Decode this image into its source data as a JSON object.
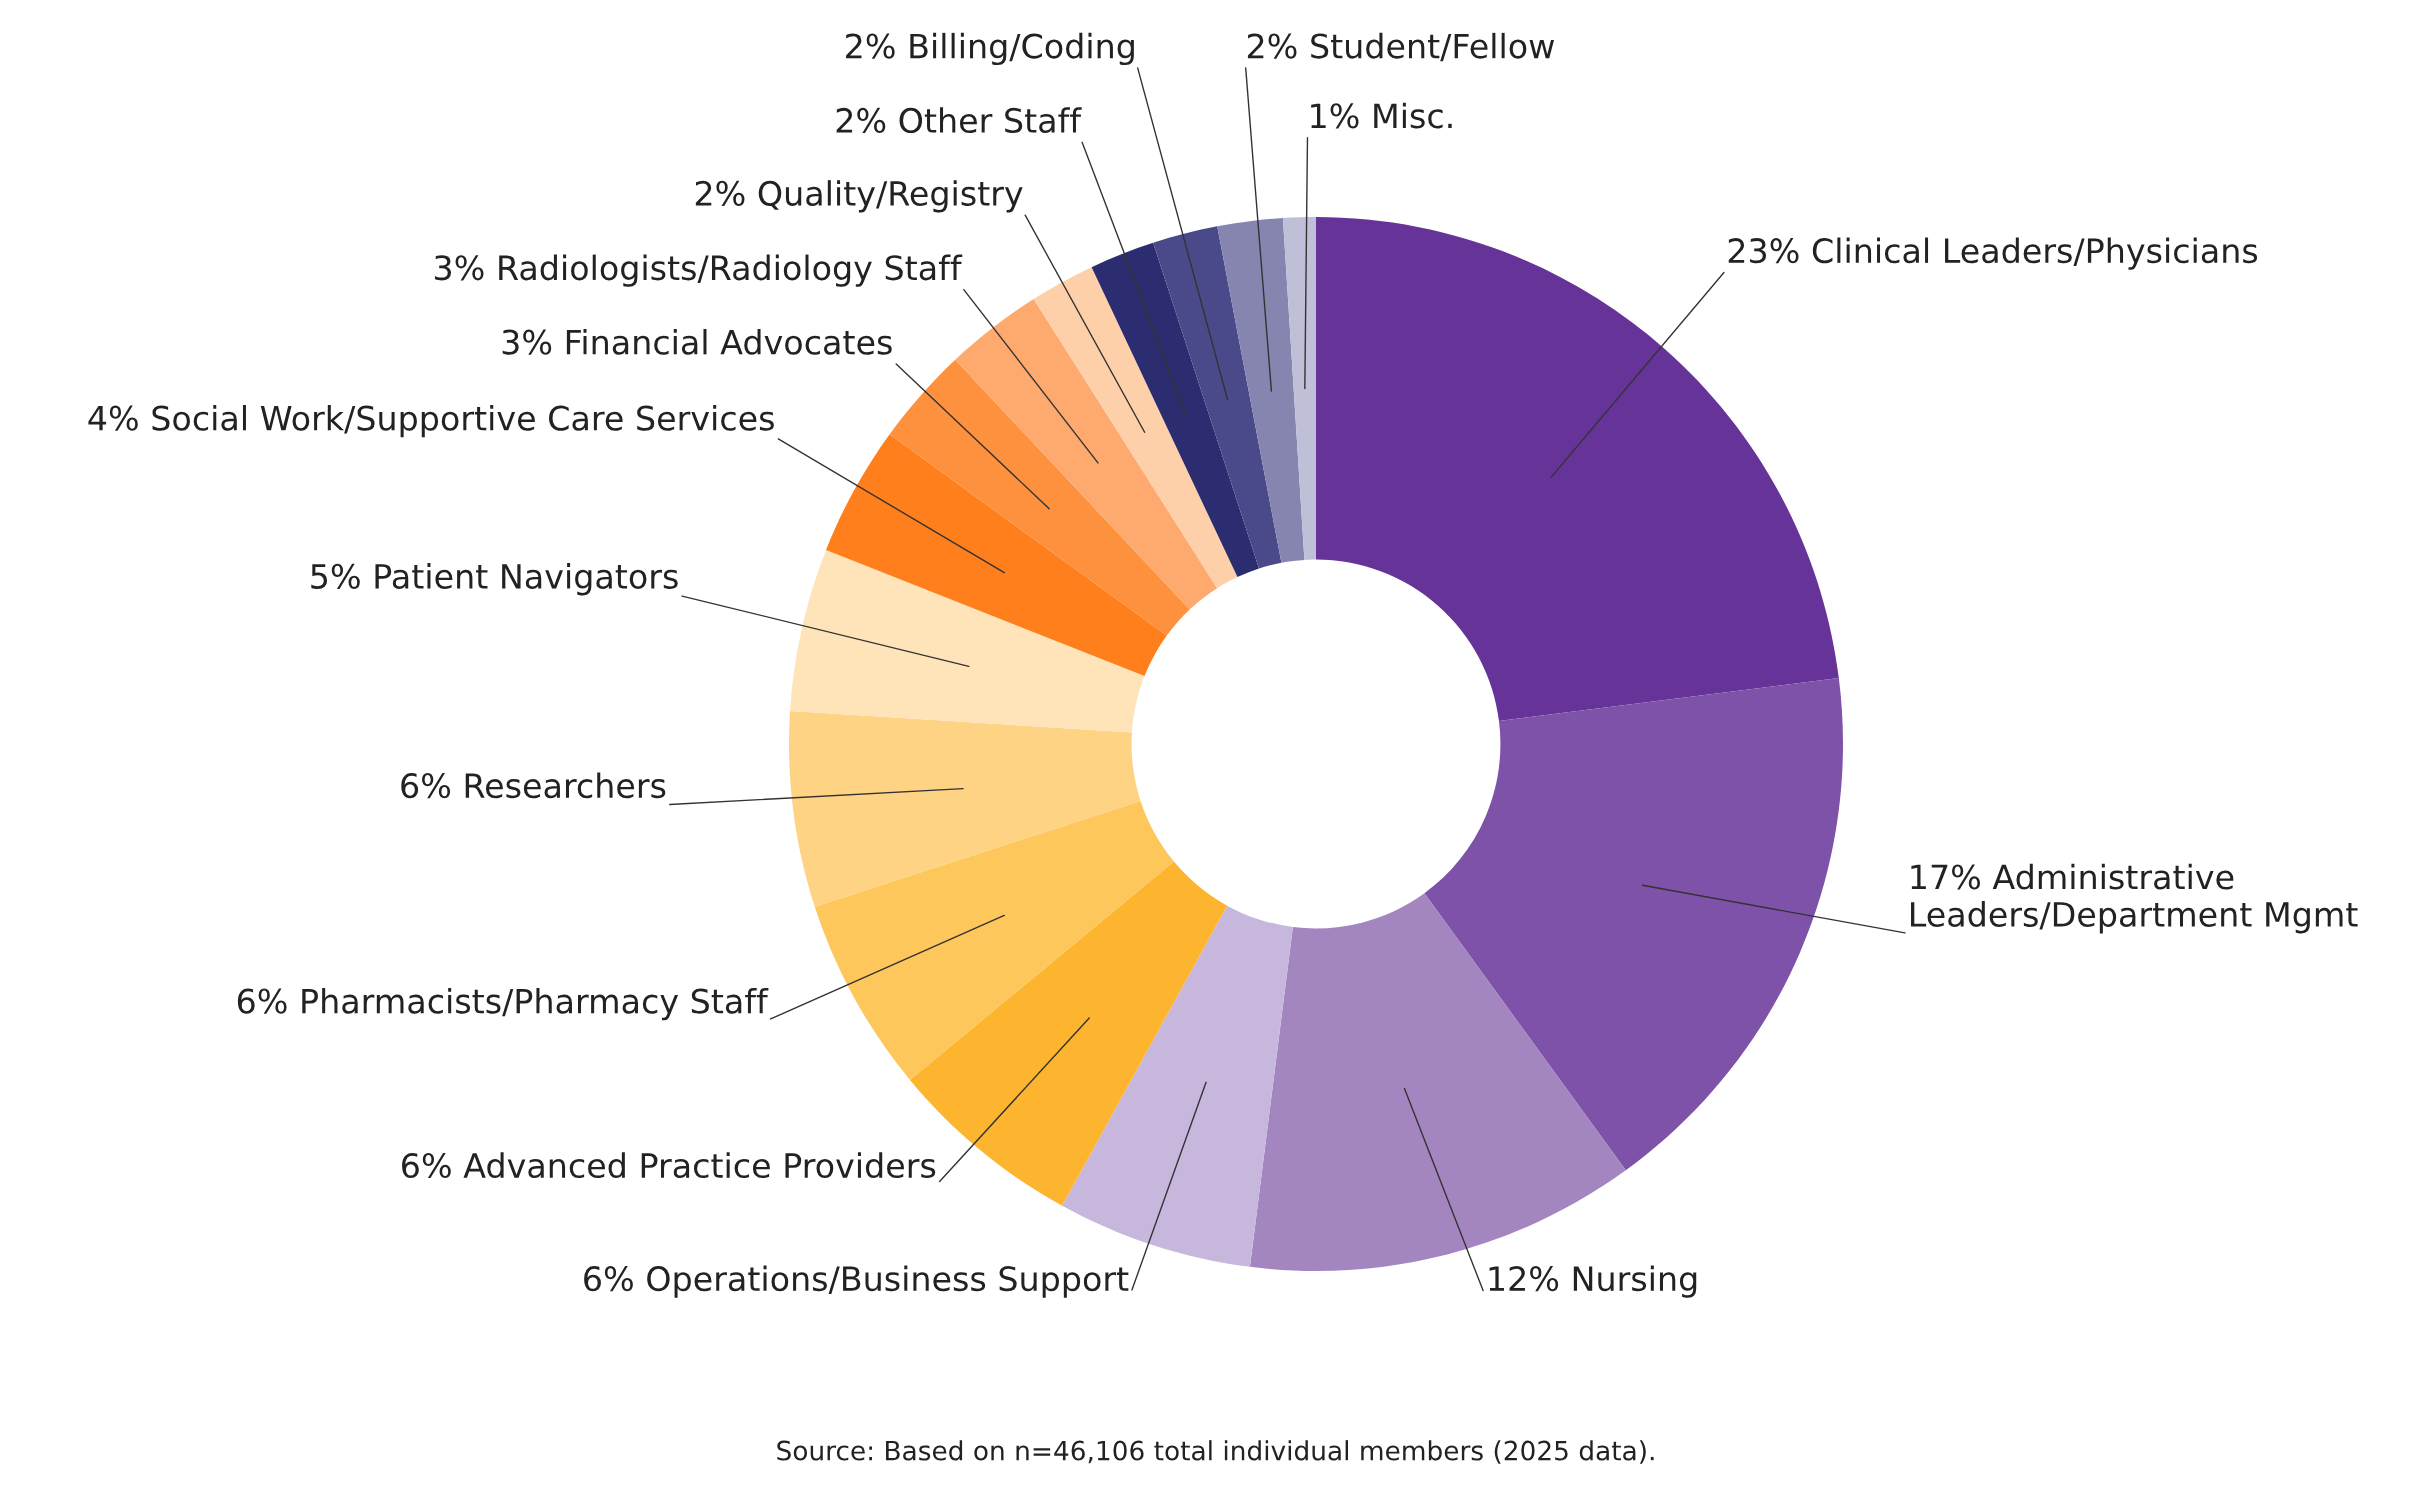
{
  "chart_data": {
    "type": "donut",
    "categories": [
      "Clinical Leaders/Physicians",
      "Administrative Leaders/Department Mgmt",
      "Nursing",
      "Operations/Business Support",
      "Advanced Practice Providers",
      "Pharmacists/Pharmacy Staff",
      "Researchers",
      "Patient Navigators",
      "Social Work/Supportive Care Services",
      "Financial Advocates",
      "Radiologists/Radiology Staff",
      "Quality/Registry",
      "Other Staff",
      "Billing/Coding",
      "Student/Fellow",
      "Misc."
    ],
    "values": [
      23,
      17,
      12,
      6,
      6,
      6,
      6,
      5,
      4,
      3,
      3,
      2,
      2,
      2,
      2,
      1
    ],
    "value_labels": [
      "23%",
      "17%",
      "12%",
      "6%",
      "6%",
      "6%",
      "6%",
      "5%",
      "4%",
      "3%",
      "3%",
      "2%",
      "2%",
      "2%",
      "2%",
      "1%"
    ],
    "colors": [
      "#663399",
      "#7e52a8",
      "#a386c0",
      "#c8b7dc",
      "#fdb42e",
      "#fec75c",
      "#fed383",
      "#fee4b8",
      "#fe7f1c",
      "#fe913d",
      "#feaa6e",
      "#fed0aa",
      "#2b2d70",
      "#4a4a8a",
      "#8585b0",
      "#c0bfd8"
    ],
    "annotations": [
      "Source: Based on n=46,106 total individual members (2025 data)."
    ]
  }
}
